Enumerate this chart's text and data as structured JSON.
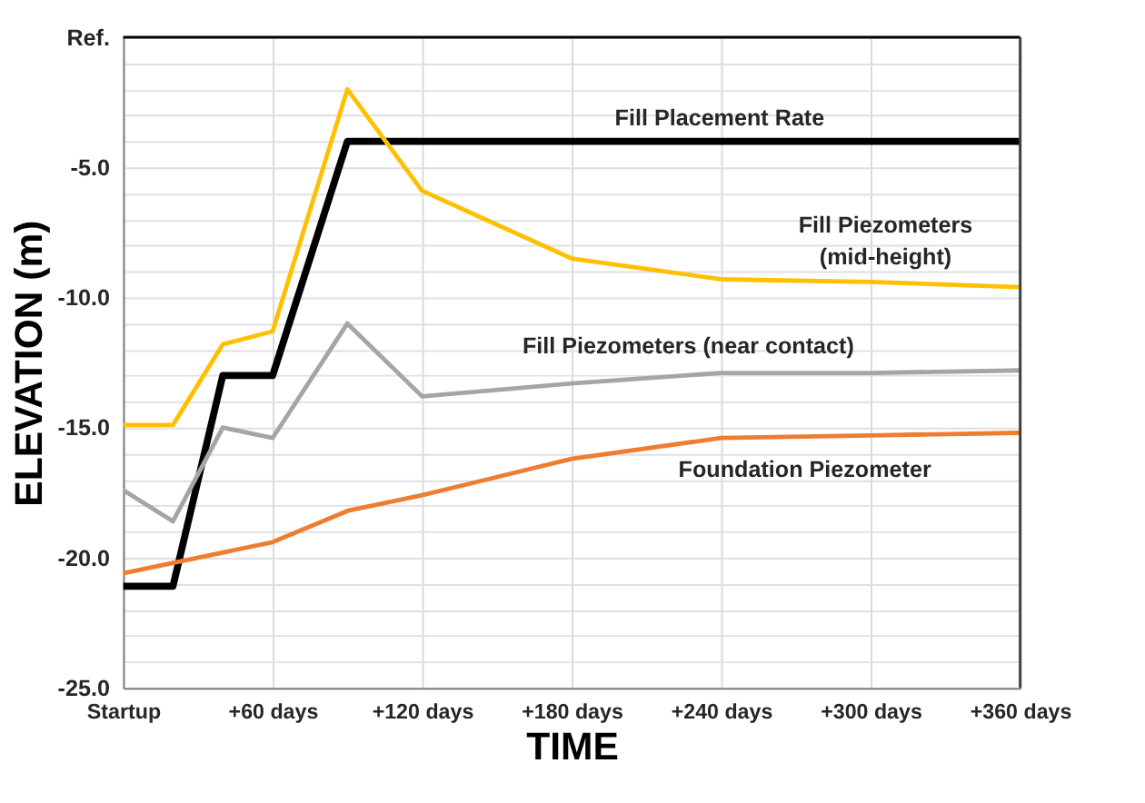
{
  "chart_data": {
    "type": "line",
    "xlabel": "TIME",
    "ylabel": "ELEVATION (m)",
    "xlim": [
      0,
      360
    ],
    "ylim": [
      -25,
      0
    ],
    "xticks": [
      {
        "value": 0,
        "label": "Startup"
      },
      {
        "value": 60,
        "label": "+60 days"
      },
      {
        "value": 120,
        "label": "+120 days"
      },
      {
        "value": 180,
        "label": "+180 days"
      },
      {
        "value": 240,
        "label": "+240 days"
      },
      {
        "value": 300,
        "label": "+300 days"
      },
      {
        "value": 360,
        "label": "+360 days"
      }
    ],
    "yticks": [
      {
        "value": -25,
        "label": "-25.0"
      },
      {
        "value": -24,
        "label": null
      },
      {
        "value": -23,
        "label": null
      },
      {
        "value": -22,
        "label": null
      },
      {
        "value": -21,
        "label": null
      },
      {
        "value": -20,
        "label": "-20.0"
      },
      {
        "value": -19,
        "label": null
      },
      {
        "value": -18,
        "label": null
      },
      {
        "value": -17,
        "label": null
      },
      {
        "value": -16,
        "label": null
      },
      {
        "value": -15,
        "label": "-15.0"
      },
      {
        "value": -14,
        "label": null
      },
      {
        "value": -13,
        "label": null
      },
      {
        "value": -12,
        "label": null
      },
      {
        "value": -11,
        "label": null
      },
      {
        "value": -10,
        "label": "-10.0"
      },
      {
        "value": -9,
        "label": null
      },
      {
        "value": -8,
        "label": null
      },
      {
        "value": -7,
        "label": null
      },
      {
        "value": -6,
        "label": null
      },
      {
        "value": -5,
        "label": "-5.0"
      },
      {
        "value": -4,
        "label": null
      },
      {
        "value": -3,
        "label": null
      },
      {
        "value": -2,
        "label": null
      },
      {
        "value": -1,
        "label": null
      },
      {
        "value": 0,
        "label": "Ref."
      }
    ],
    "grid": true,
    "marker": "none",
    "line_style": "solid",
    "series": [
      {
        "color": "#000000",
        "x": [
          0,
          20,
          40,
          60,
          90,
          120,
          180,
          240,
          300,
          360
        ],
        "values": [
          -21.1,
          -21.1,
          -13.0,
          -13.0,
          -4.0,
          -4.0,
          -4.0,
          -4.0,
          -4.0,
          -4.0
        ]
      },
      {
        "color": "#ffc000",
        "x": [
          0,
          20,
          40,
          60,
          90,
          120,
          180,
          240,
          300,
          360
        ],
        "values": [
          -14.9,
          -14.9,
          -11.8,
          -11.3,
          -2.0,
          -5.9,
          -8.5,
          -9.3,
          -9.4,
          -9.6
        ]
      },
      {
        "color": "#a5a5a5",
        "x": [
          0,
          20,
          40,
          60,
          90,
          120,
          180,
          240,
          300,
          360
        ],
        "values": [
          -17.4,
          -18.6,
          -15.0,
          -15.4,
          -11.0,
          -13.8,
          -13.3,
          -12.9,
          -12.9,
          -12.8
        ]
      },
      {
        "color": "#ed7d31",
        "x": [
          0,
          60,
          90,
          120,
          180,
          240,
          300,
          360
        ],
        "values": [
          -20.6,
          -19.4,
          -18.2,
          -17.6,
          -16.2,
          -15.4,
          -15.3,
          -15.2
        ]
      }
    ],
    "annotations": [
      "Fill Placement Rate",
      "Fill Piezometers\n(mid-height)",
      "Fill Piezometers (near contact)",
      "Foundation Piezometer"
    ]
  }
}
